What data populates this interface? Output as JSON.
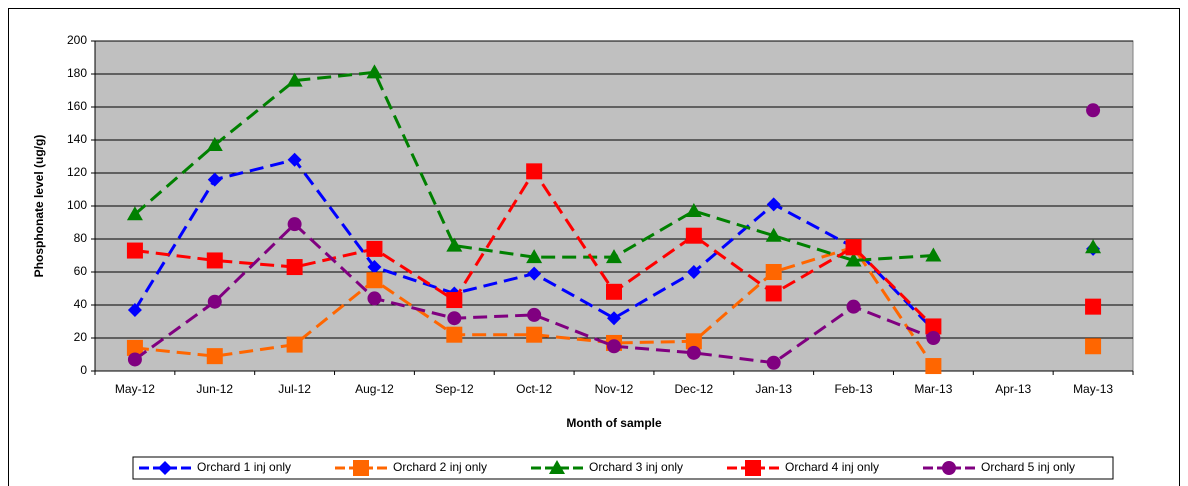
{
  "chart_data": {
    "type": "line",
    "xlabel": "Month of sample",
    "ylabel": "Phosphonate level (ug/g)",
    "categories": [
      "May-12",
      "Jun-12",
      "Jul-12",
      "Aug-12",
      "Sep-12",
      "Oct-12",
      "Nov-12",
      "Dec-12",
      "Jan-13",
      "Feb-13",
      "Mar-13",
      "Apr-13",
      "May-13"
    ],
    "ylim": [
      0,
      200
    ],
    "yticks": [
      0,
      20,
      40,
      60,
      80,
      100,
      120,
      140,
      160,
      180,
      200
    ],
    "grid": true,
    "legend": "bottom",
    "background": "#c0c0c0",
    "line_style": "dashed",
    "series": [
      {
        "name": "Orchard 1 inj only",
        "color": "#0000ff",
        "marker": "diamond",
        "values": [
          37,
          116,
          128,
          63,
          47,
          59,
          32,
          60,
          101,
          75,
          25,
          null,
          74
        ]
      },
      {
        "name": "Orchard 2 inj only",
        "color": "#ff6600",
        "marker": "square",
        "values": [
          14,
          9,
          16,
          55,
          22,
          22,
          17,
          18,
          60,
          75,
          3,
          null,
          15
        ]
      },
      {
        "name": "Orchard 3 inj only",
        "color": "#008000",
        "marker": "triangle",
        "values": [
          95,
          137,
          176,
          181,
          76,
          69,
          69,
          97,
          82,
          67,
          70,
          null,
          75
        ]
      },
      {
        "name": "Orchard 4 inj only",
        "color": "#ff0000",
        "marker": "square",
        "values": [
          73,
          67,
          63,
          74,
          43,
          121,
          48,
          82,
          47,
          75,
          27,
          null,
          39
        ]
      },
      {
        "name": "Orchard 5 inj only",
        "color": "#800080",
        "marker": "circle",
        "values": [
          7,
          42,
          89,
          44,
          32,
          34,
          15,
          11,
          5,
          39,
          20,
          null,
          158
        ]
      }
    ]
  }
}
